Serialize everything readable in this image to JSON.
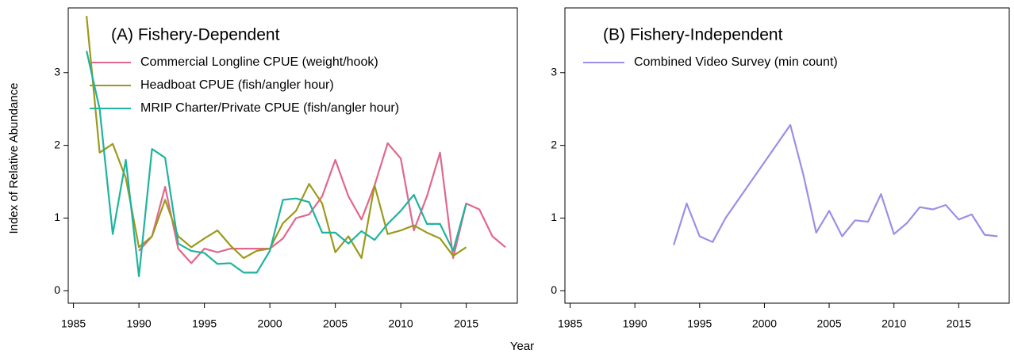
{
  "ylabel": "Index of Relative Abundance",
  "xlabel": "Year",
  "chart_data": [
    {
      "type": "line",
      "title": "(A) Fishery-Dependent",
      "xlim": [
        1984.6,
        2018.9
      ],
      "ylim": [
        -0.17,
        3.89
      ],
      "xticks": [
        1985,
        1990,
        1995,
        2000,
        2005,
        2010,
        2015
      ],
      "yticks": [
        0,
        1,
        2,
        3
      ],
      "series": [
        {
          "name": "Commercial Longline CPUE (weight/hook)",
          "color": "#e0688c",
          "x": [
            1990,
            1991,
            1992,
            1993,
            1994,
            1995,
            1996,
            1997,
            1998,
            1999,
            2000,
            2001,
            2002,
            2003,
            2004,
            2005,
            2006,
            2007,
            2008,
            2009,
            2010,
            2011,
            2012,
            2013,
            2014,
            2015,
            2016,
            2017,
            2018
          ],
          "values": [
            0.55,
            0.75,
            1.43,
            0.58,
            0.38,
            0.58,
            0.53,
            0.58,
            0.58,
            0.58,
            0.58,
            0.72,
            1.0,
            1.05,
            1.3,
            1.8,
            1.3,
            0.98,
            1.45,
            2.03,
            1.82,
            0.83,
            1.3,
            1.9,
            0.45,
            1.2,
            1.12,
            0.75,
            0.6
          ]
        },
        {
          "name": "Headboat CPUE (fish/angler hour)",
          "color": "#9c9a1c",
          "x": [
            1986,
            1987,
            1988,
            1989,
            1990,
            1991,
            1992,
            1993,
            1994,
            1995,
            1996,
            1997,
            1998,
            1999,
            2000,
            2001,
            2002,
            2003,
            2004,
            2005,
            2006,
            2007,
            2008,
            2009,
            2010,
            2011,
            2012,
            2013,
            2014,
            2015
          ],
          "values": [
            3.78,
            1.9,
            2.02,
            1.55,
            0.6,
            0.75,
            1.25,
            0.75,
            0.6,
            0.72,
            0.83,
            0.62,
            0.45,
            0.55,
            0.58,
            0.93,
            1.1,
            1.47,
            1.2,
            0.53,
            0.75,
            0.45,
            1.45,
            0.78,
            0.83,
            0.9,
            0.8,
            0.72,
            0.48,
            0.6
          ]
        },
        {
          "name": "MRIP Charter/Private CPUE (fish/angler hour)",
          "color": "#1fb3a0",
          "x": [
            1986,
            1987,
            1988,
            1989,
            1990,
            1991,
            1992,
            1993,
            1994,
            1995,
            1996,
            1997,
            1998,
            1999,
            2000,
            2001,
            2002,
            2003,
            2004,
            2005,
            2006,
            2007,
            2008,
            2009,
            2010,
            2011,
            2012,
            2013,
            2014,
            2015
          ],
          "values": [
            3.3,
            2.5,
            0.78,
            1.8,
            0.2,
            1.95,
            1.83,
            0.65,
            0.55,
            0.52,
            0.37,
            0.38,
            0.25,
            0.25,
            0.55,
            1.25,
            1.27,
            1.22,
            0.8,
            0.8,
            0.65,
            0.82,
            0.7,
            0.92,
            1.1,
            1.32,
            0.92,
            0.92,
            0.55,
            1.2
          ]
        }
      ]
    },
    {
      "type": "line",
      "title": "(B) Fishery-Independent",
      "xlim": [
        1984.6,
        2018.9
      ],
      "ylim": [
        -0.17,
        3.89
      ],
      "xticks": [
        1985,
        1990,
        1995,
        2000,
        2005,
        2010,
        2015
      ],
      "yticks": [
        0,
        1,
        2,
        3
      ],
      "series": [
        {
          "name": "Combined Video Survey (min count)",
          "color": "#9d8ee6",
          "x": [
            1993,
            1994,
            1995,
            1996,
            1997,
            2002,
            2003,
            2004,
            2005,
            2006,
            2007,
            2008,
            2009,
            2010,
            2011,
            2012,
            2013,
            2014,
            2015,
            2016,
            2017,
            2018
          ],
          "values": [
            0.63,
            1.2,
            0.75,
            0.67,
            1.0,
            2.28,
            1.6,
            0.8,
            1.1,
            0.75,
            0.97,
            0.95,
            1.33,
            0.78,
            0.93,
            1.15,
            1.12,
            1.18,
            0.98,
            1.05,
            0.77,
            0.75
          ]
        }
      ]
    }
  ]
}
